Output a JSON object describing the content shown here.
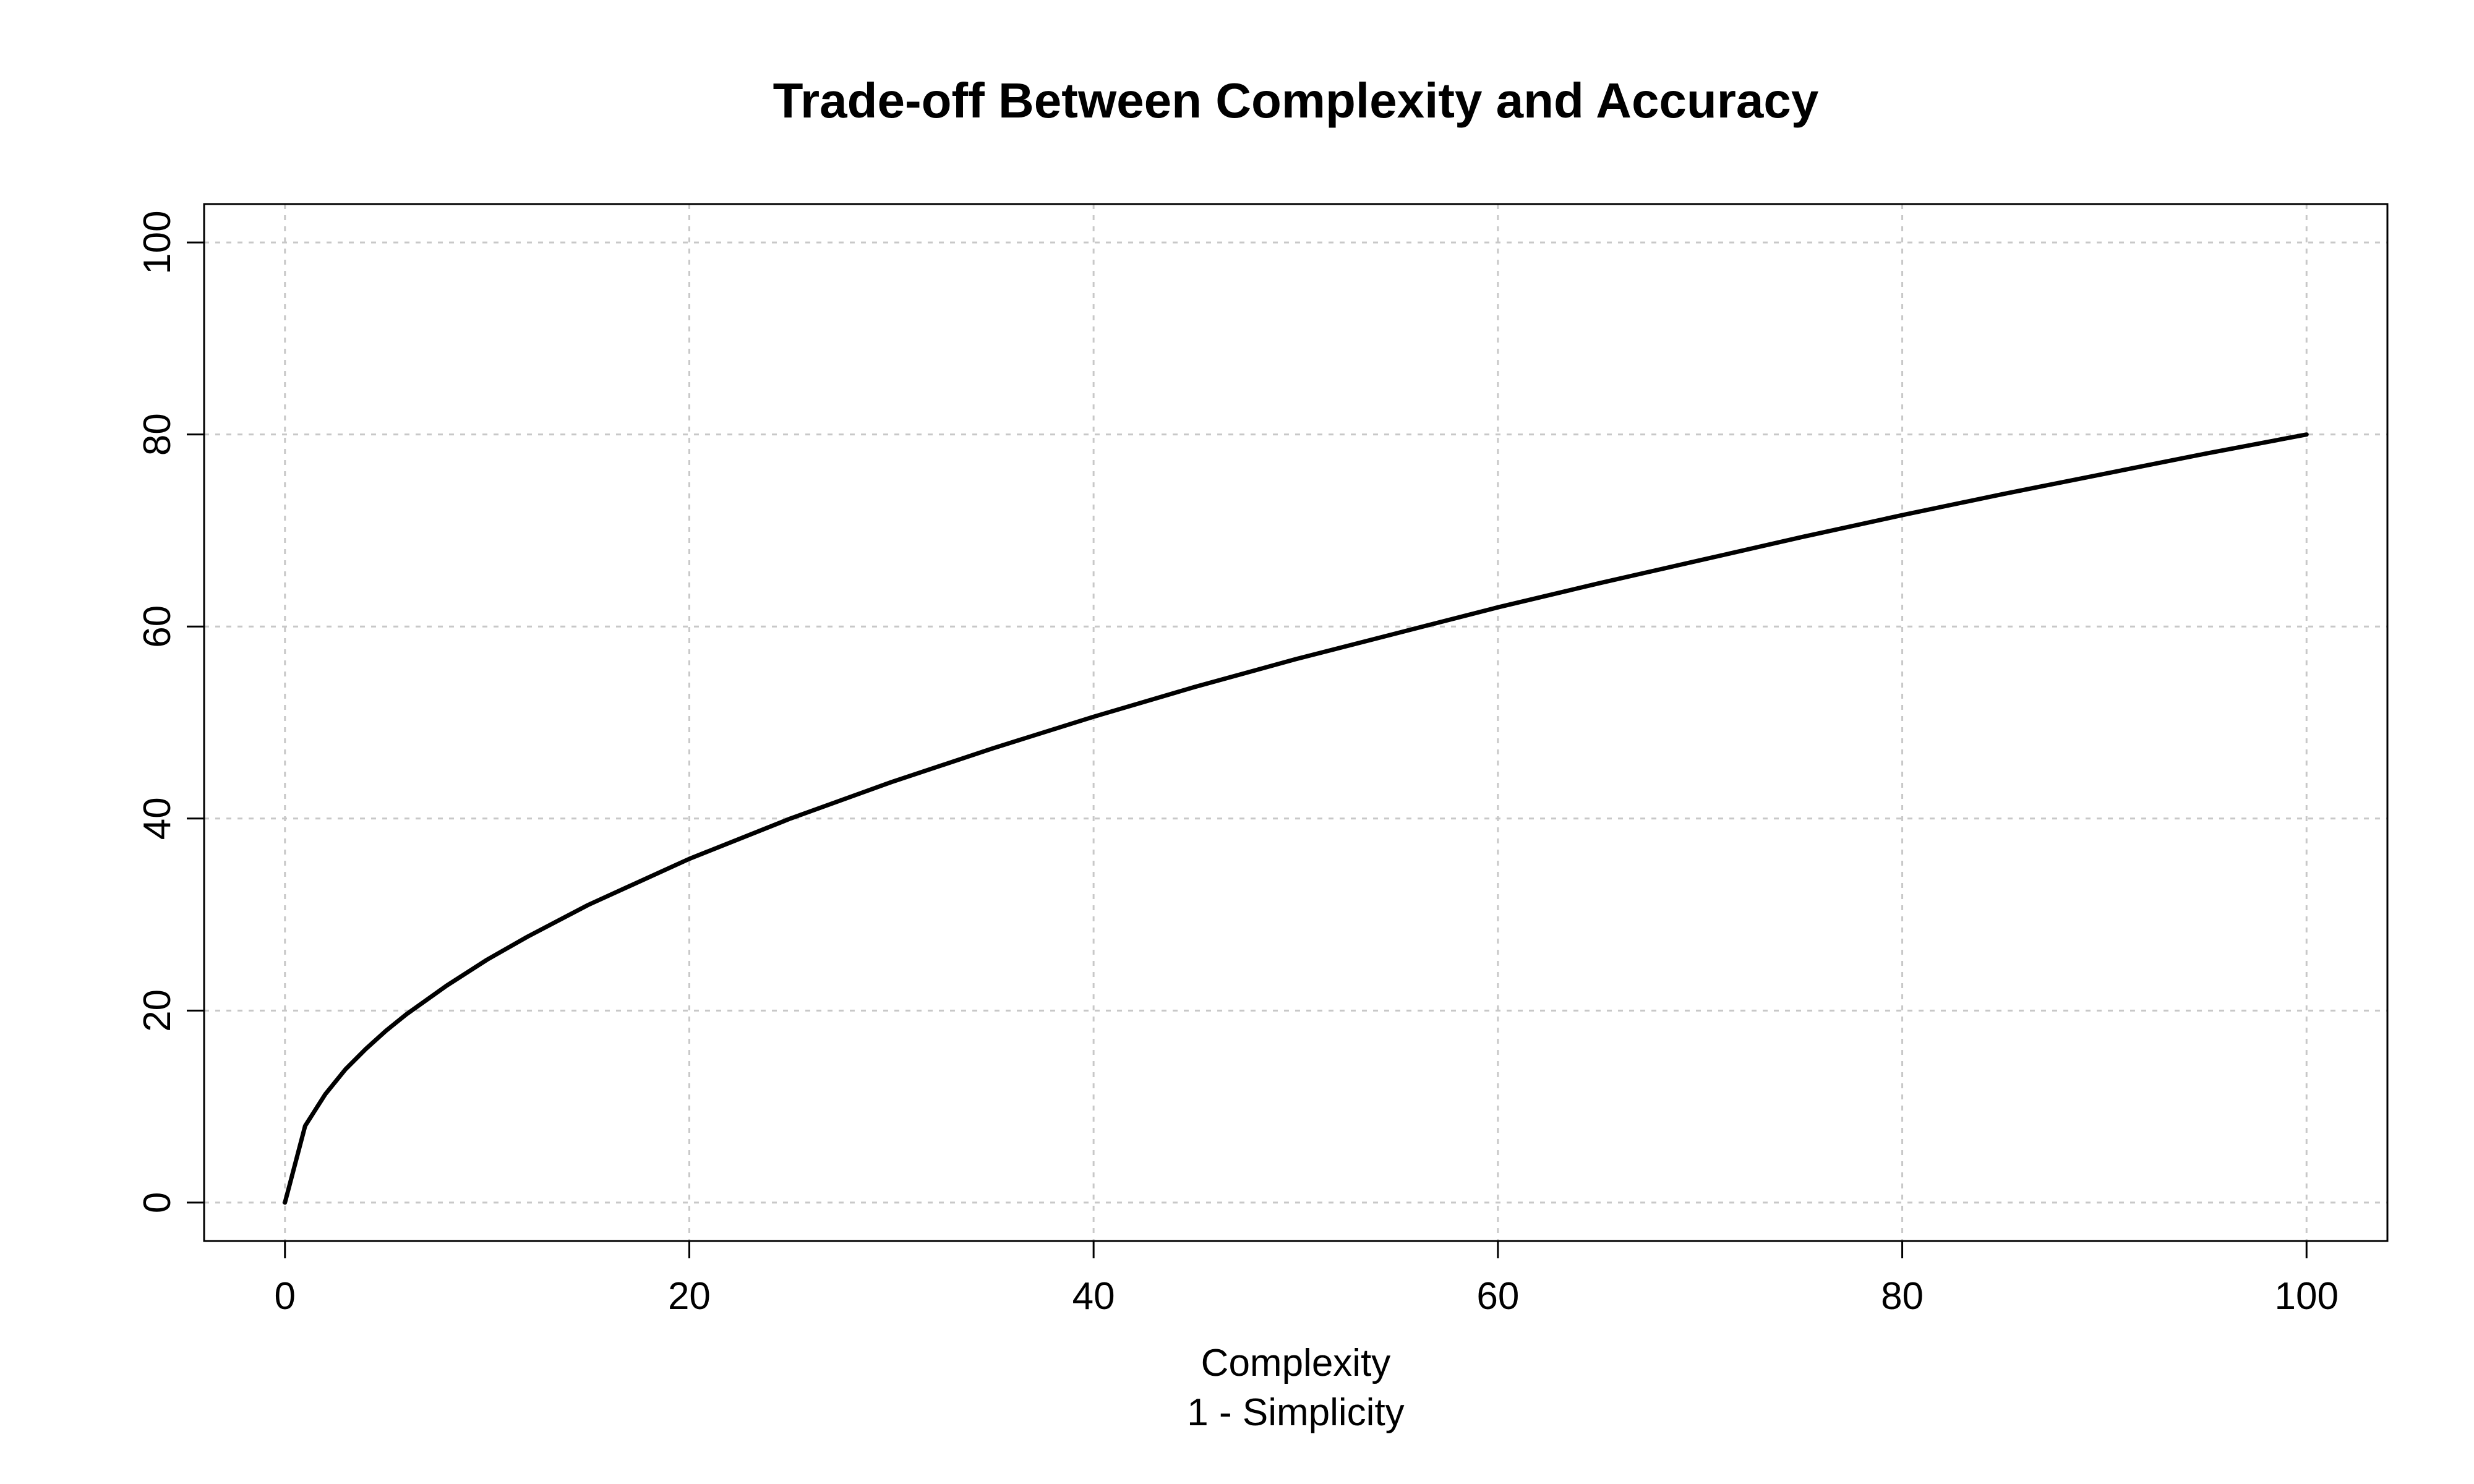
{
  "chart_data": {
    "type": "line",
    "title": "Trade-off Between Complexity and Accuracy",
    "subtitle": "",
    "xlabel": "Complexity",
    "xlabel_line2": "1 - Simplicity",
    "ylabel": "",
    "xlim": [
      -4,
      104
    ],
    "ylim": [
      -4,
      104
    ],
    "x_ticks": [
      0,
      20,
      40,
      60,
      80,
      100
    ],
    "x_tick_labels": [
      "0",
      "20",
      "40",
      "60",
      "80",
      "100"
    ],
    "y_ticks": [
      0,
      20,
      40,
      60,
      80,
      100
    ],
    "y_tick_labels": [
      "0",
      "20",
      "40",
      "60",
      "80",
      "100"
    ],
    "grid": true,
    "legend": "none",
    "colors": {
      "line": "#000000",
      "grid": "#c8c8c8",
      "frame": "#000000",
      "text": "#000000"
    },
    "series": [
      {
        "x": [
          0,
          1,
          2,
          3,
          4,
          5,
          6,
          8,
          10,
          12,
          15,
          20,
          25,
          30,
          35,
          40,
          45,
          50,
          55,
          60,
          65,
          70,
          75,
          80,
          85,
          90,
          95,
          100
        ],
        "y": [
          0,
          8.0,
          11.3,
          13.9,
          16.0,
          17.9,
          19.6,
          22.6,
          25.3,
          27.7,
          31.0,
          35.8,
          40.0,
          43.8,
          47.3,
          50.6,
          53.7,
          56.6,
          59.3,
          62.0,
          64.5,
          66.9,
          69.3,
          71.6,
          73.8,
          75.9,
          78.0,
          80.0
        ]
      }
    ]
  }
}
